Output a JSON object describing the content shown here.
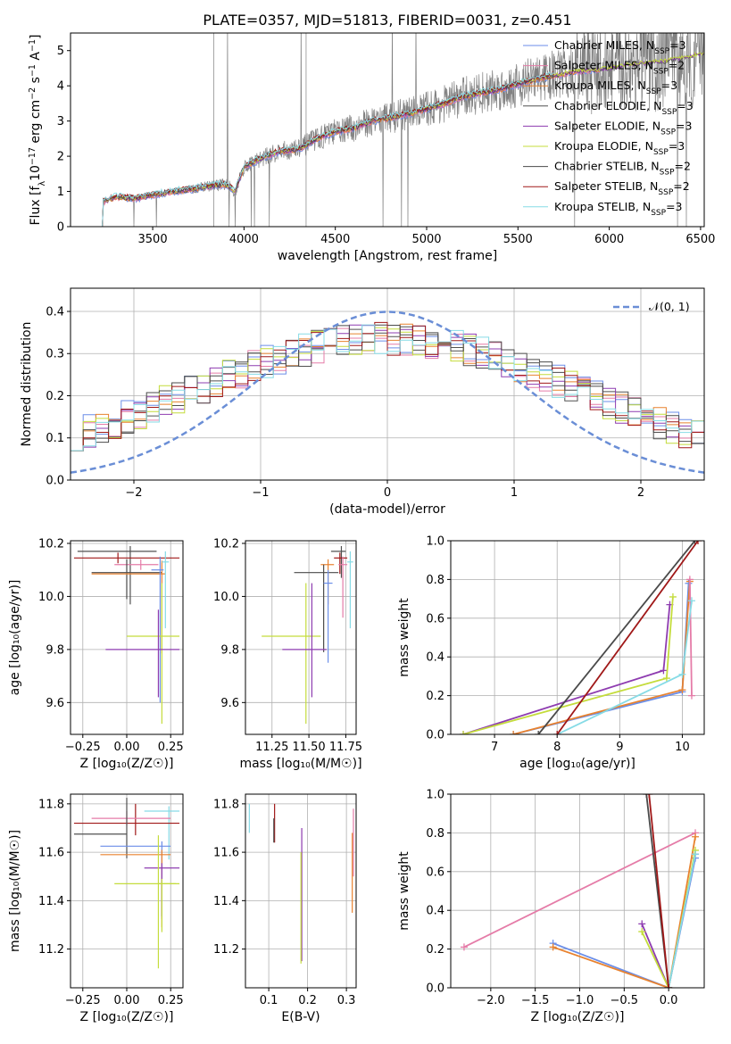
{
  "figure": {
    "title": "PLATE=0357, MJD=51813, FIBERID=0031, z=0.451"
  },
  "colors": {
    "chabrier_miles": "#6b8ee8",
    "salpeter_miles": "#e57ca8",
    "kroupa_miles": "#e8822f",
    "chabrier_elodie": "#505050",
    "salpeter_elodie": "#8e3cb0",
    "kroupa_elodie": "#c4dc3c",
    "chabrier_stelib": "#4a4a4a",
    "salpeter_stelib": "#a01818",
    "kroupa_stelib": "#86dbe6",
    "data_spectrum": "#808080",
    "normal_curve": "#6a8ed6"
  },
  "chart_data": [
    {
      "id": "spectrum",
      "type": "line",
      "xlabel": "wavelength [Angstrom, rest frame]",
      "ylabel_parts": [
        "Flux [f",
        "λ",
        "10",
        "−17",
        " erg cm",
        "−2",
        " s",
        "−1",
        " A",
        "−1",
        "]"
      ],
      "xlim": [
        3050,
        6520
      ],
      "ylim": [
        0,
        5.5
      ],
      "xticks": [
        3500,
        4000,
        4500,
        5000,
        5500,
        6000,
        6500
      ],
      "yticks": [
        0,
        1,
        2,
        3,
        4,
        5
      ],
      "grid": false,
      "legend_position": "top-right",
      "model_anchors": {
        "x": [
          3200,
          3230,
          3300,
          3400,
          3500,
          3600,
          3700,
          3800,
          3900,
          3950,
          4000,
          4100,
          4200,
          4300,
          4400,
          4500,
          4600,
          4700,
          4800,
          4900,
          5000,
          5100,
          5200,
          5300,
          5400,
          5500,
          5600,
          5700,
          5800,
          5900,
          6000,
          6100,
          6200,
          6300,
          6400,
          6500
        ],
        "y": [
          0,
          0.72,
          0.85,
          0.8,
          0.9,
          1.0,
          1.05,
          1.15,
          1.2,
          1.0,
          1.7,
          1.95,
          2.15,
          2.2,
          2.5,
          2.7,
          2.8,
          3.0,
          3.1,
          3.2,
          3.35,
          3.5,
          3.7,
          3.8,
          3.9,
          4.05,
          4.2,
          4.3,
          4.4,
          4.45,
          4.5,
          4.6,
          4.65,
          4.7,
          4.8,
          4.9
        ]
      },
      "series": [
        {
          "name": "Chabrier MILES, N",
          "nssp": "=3",
          "color_key": "chabrier_miles",
          "end_x": 5950
        },
        {
          "name": "Salpeter MILES, N",
          "nssp": "=2",
          "color_key": "salpeter_miles",
          "end_x": 5950
        },
        {
          "name": "Kroupa MILES, N",
          "nssp": "=3",
          "color_key": "kroupa_miles",
          "end_x": 5950
        },
        {
          "name": "Chabrier ELODIE, N",
          "nssp": "=3",
          "color_key": "chabrier_elodie",
          "end_x": 6800
        },
        {
          "name": "Salpeter ELODIE, N",
          "nssp": "=3",
          "color_key": "salpeter_elodie",
          "end_x": 6800
        },
        {
          "name": "Kroupa ELODIE, N",
          "nssp": "=3",
          "color_key": "kroupa_elodie",
          "end_x": 6800
        },
        {
          "name": "Chabrier STELIB, N",
          "nssp": "=2",
          "color_key": "chabrier_stelib",
          "end_x": 5700
        },
        {
          "name": "Salpeter STELIB, N",
          "nssp": "=2",
          "color_key": "salpeter_stelib",
          "end_x": 5700
        },
        {
          "name": "Kroupa STELIB, N",
          "nssp": "=3",
          "color_key": "kroupa_stelib",
          "end_x": 5700
        }
      ],
      "nssp_sub": "SSP"
    },
    {
      "id": "residuals",
      "type": "line",
      "xlabel": "(data-model)/error",
      "ylabel": "Normed distribution",
      "xlim": [
        -2.5,
        2.5
      ],
      "ylim": [
        0,
        0.455
      ],
      "xticks": [
        -2,
        -1,
        0,
        1,
        2
      ],
      "yticks": [
        0.0,
        0.1,
        0.2,
        0.3,
        0.4
      ],
      "xtick_labels": [
        "−2",
        "−1",
        "0",
        "1",
        "2"
      ],
      "ytick_labels": [
        "0.0",
        "0.1",
        "0.2",
        "0.3",
        "0.4"
      ],
      "grid": true,
      "legend_position": "top-right",
      "legend_label": "𝒩(0, 1)",
      "normal_curve": {
        "mean": 0,
        "sigma": 1
      },
      "histogram": {
        "bin_width": 0.1,
        "bin_start": -2.5,
        "bins": 50,
        "noise_amplitude": 0.04
      }
    },
    {
      "id": "age_vs_Z",
      "type": "scatter",
      "xlabel": "Z [log₁₀(Z/Z☉)]",
      "ylabel": "age  [log₁₀(age/yr)]",
      "xlim": [
        -0.32,
        0.32
      ],
      "ylim": [
        9.48,
        10.21
      ],
      "xticks": [
        -0.25,
        0.0,
        0.25
      ],
      "xtick_labels": [
        "−0.25",
        "0.00",
        "0.25"
      ],
      "yticks": [
        9.6,
        9.8,
        10.0,
        10.2
      ],
      "ytick_labels": [
        "9.6",
        "9.8",
        "10.0",
        "10.2"
      ],
      "grid": true,
      "points": [
        {
          "x": 0.02,
          "xerr": [
            0.3,
            0.15
          ],
          "y": 10.17,
          "yerr": [
            0.2,
            0.02
          ],
          "color_key": "chabrier_elodie"
        },
        {
          "x": -0.05,
          "xerr": [
            0.25,
            0.35
          ],
          "y": 10.145,
          "yerr": [
            0.02,
            0.02
          ],
          "color_key": "salpeter_stelib"
        },
        {
          "x": 0.08,
          "xerr": [
            0.15,
            0.1
          ],
          "y": 10.12,
          "yerr": [
            0.02,
            0.02
          ],
          "color_key": "salpeter_miles"
        },
        {
          "x": 0.0,
          "xerr": [
            0.2,
            0.2
          ],
          "y": 10.09,
          "yerr": [
            0.1,
            0.05
          ],
          "color_key": "chabrier_stelib"
        },
        {
          "x": 0.2,
          "xerr": [
            0.4,
            0.02
          ],
          "y": 10.085,
          "yerr": [
            0.3,
            0.05
          ],
          "color_key": "kroupa_miles"
        },
        {
          "x": 0.19,
          "xerr": [
            0.05,
            0.02
          ],
          "y": 10.1,
          "yerr": [
            0.5,
            0.05
          ],
          "color_key": "chabrier_miles"
        },
        {
          "x": 0.22,
          "xerr": [
            0.02,
            0.02
          ],
          "y": 10.13,
          "yerr": [
            0.25,
            0.04
          ],
          "color_key": "kroupa_stelib"
        },
        {
          "x": 0.2,
          "xerr": [
            0.2,
            0.1
          ],
          "y": 9.85,
          "yerr": [
            0.33,
            0.2
          ],
          "color_key": "kroupa_elodie"
        },
        {
          "x": 0.18,
          "xerr": [
            0.3,
            0.12
          ],
          "y": 9.8,
          "yerr": [
            0.18,
            0.15
          ],
          "color_key": "salpeter_elodie"
        }
      ]
    },
    {
      "id": "age_vs_mass",
      "type": "scatter",
      "xlabel": "mass [log₁₀(M/M☉)]",
      "xlim": [
        11.07,
        11.82
      ],
      "ylim": [
        9.48,
        10.21
      ],
      "xticks": [
        11.25,
        11.5,
        11.75
      ],
      "xtick_labels": [
        "11.25",
        "11.50",
        "11.75"
      ],
      "yticks": [
        9.6,
        9.8,
        10.0,
        10.2
      ],
      "ytick_labels": [
        "9.6",
        "9.8",
        "10.0",
        "10.2"
      ],
      "grid": true,
      "points": [
        {
          "x": 11.72,
          "xerr": [
            0.07,
            0.03
          ],
          "y": 10.17,
          "yerr": [
            0.1,
            0.02
          ],
          "color_key": "chabrier_elodie"
        },
        {
          "x": 11.71,
          "xerr": [
            0.04,
            0.05
          ],
          "y": 10.145,
          "yerr": [
            0.06,
            0.02
          ],
          "color_key": "salpeter_stelib"
        },
        {
          "x": 11.63,
          "xerr": [
            0.05,
            0.04
          ],
          "y": 10.12,
          "yerr": [
            0.15,
            0.02
          ],
          "color_key": "kroupa_miles"
        },
        {
          "x": 11.73,
          "xerr": [
            0.03,
            0.03
          ],
          "y": 10.12,
          "yerr": [
            0.2,
            0.03
          ],
          "color_key": "salpeter_miles"
        },
        {
          "x": 11.6,
          "xerr": [
            0.2,
            0.1
          ],
          "y": 10.09,
          "yerr": [
            0.3,
            0.03
          ],
          "color_key": "chabrier_stelib"
        },
        {
          "x": 11.63,
          "xerr": [
            0.03,
            0.03
          ],
          "y": 10.05,
          "yerr": [
            0.3,
            0.05
          ],
          "color_key": "chabrier_miles"
        },
        {
          "x": 11.78,
          "xerr": [
            0.02,
            0.02
          ],
          "y": 10.13,
          "yerr": [
            0.25,
            0.04
          ],
          "color_key": "kroupa_stelib"
        },
        {
          "x": 11.48,
          "xerr": [
            0.3,
            0.1
          ],
          "y": 9.85,
          "yerr": [
            0.33,
            0.2
          ],
          "color_key": "kroupa_elodie"
        },
        {
          "x": 11.52,
          "xerr": [
            0.2,
            0.1
          ],
          "y": 9.8,
          "yerr": [
            0.18,
            0.25
          ],
          "color_key": "salpeter_elodie"
        }
      ]
    },
    {
      "id": "weight_vs_age",
      "type": "line",
      "xlabel": "age  [log₁₀(age/yr)]",
      "ylabel": "mass weight",
      "xlim": [
        6.3,
        10.35
      ],
      "ylim": [
        0,
        1.0
      ],
      "xticks": [
        7,
        8,
        9,
        10
      ],
      "yticks": [
        0.0,
        0.2,
        0.4,
        0.6,
        0.8,
        1.0
      ],
      "ytick_labels": [
        "0.0",
        "0.2",
        "0.4",
        "0.6",
        "0.8",
        "1.0"
      ],
      "grid": true,
      "lines": [
        {
          "x": [
            6.5,
            9.7,
            9.8
          ],
          "y": [
            0.0,
            0.33,
            0.67
          ],
          "color_key": "salpeter_elodie"
        },
        {
          "x": [
            6.5,
            9.75,
            9.85
          ],
          "y": [
            0.0,
            0.29,
            0.71
          ],
          "color_key": "kroupa_elodie"
        },
        {
          "x": [
            7.3,
            10.0,
            10.1
          ],
          "y": [
            0.0,
            0.22,
            0.78
          ],
          "color_key": "chabrier_miles"
        },
        {
          "x": [
            7.3,
            10.0,
            10.12
          ],
          "y": [
            0.0,
            0.23,
            0.79
          ],
          "color_key": "kroupa_miles"
        },
        {
          "x": [
            10.12,
            10.15
          ],
          "y": [
            0.8,
            0.2
          ],
          "color_key": "salpeter_miles"
        },
        {
          "x": [
            8.0,
            10.0,
            10.15
          ],
          "y": [
            0.0,
            0.31,
            0.69
          ],
          "color_key": "kroupa_stelib"
        },
        {
          "x": [
            7.7,
            10.2
          ],
          "y": [
            0.0,
            1.0
          ],
          "color_key": "chabrier_stelib"
        },
        {
          "x": [
            8.0,
            10.25
          ],
          "y": [
            0.0,
            1.0
          ],
          "color_key": "salpeter_stelib"
        }
      ]
    },
    {
      "id": "mass_vs_Z",
      "type": "scatter",
      "xlabel": "Z [log₁₀(Z/Z☉)]",
      "ylabel": "mass [log₁₀(M/M☉)]",
      "xlim": [
        -0.32,
        0.32
      ],
      "ylim": [
        11.04,
        11.84
      ],
      "xticks": [
        -0.25,
        0.0,
        0.25
      ],
      "xtick_labels": [
        "−0.25",
        "0.00",
        "0.25"
      ],
      "yticks": [
        11.2,
        11.4,
        11.6,
        11.8
      ],
      "ytick_labels": [
        "11.2",
        "11.4",
        "11.6",
        "11.8"
      ],
      "grid": true,
      "points": [
        {
          "x": 0.24,
          "xerr": [
            0.14,
            0.06
          ],
          "y": 11.77,
          "yerr": [
            0.2,
            0.02
          ],
          "color_key": "kroupa_stelib"
        },
        {
          "x": 0.05,
          "xerr": [
            0.35,
            0.25
          ],
          "y": 11.72,
          "yerr": [
            0.05,
            0.08
          ],
          "color_key": "salpeter_stelib"
        },
        {
          "x": 0.0,
          "xerr": [
            0.2,
            0.25
          ],
          "y": 11.74,
          "yerr": [
            0.03,
            0.03
          ],
          "color_key": "salpeter_miles"
        },
        {
          "x": 0.0,
          "xerr": [
            0.3,
            0.0
          ],
          "y": 11.675,
          "yerr": [
            0.1,
            0.15
          ],
          "color_key": "chabrier_elodie"
        },
        {
          "x": 0.2,
          "xerr": [
            0.35,
            0.05
          ],
          "y": 11.625,
          "yerr": [
            0.3,
            0.02
          ],
          "color_key": "chabrier_miles"
        },
        {
          "x": 0.2,
          "xerr": [
            0.35,
            0.05
          ],
          "y": 11.59,
          "yerr": [
            0.3,
            0.02
          ],
          "color_key": "kroupa_miles"
        },
        {
          "x": 0.2,
          "xerr": [
            0.1,
            0.1
          ],
          "y": 11.535,
          "yerr": [
            0.2,
            0.02
          ],
          "color_key": "salpeter_elodie"
        },
        {
          "x": 0.2,
          "xerr": [
            0.02,
            0.1
          ],
          "y": 11.47,
          "yerr": [
            0.2,
            0.02
          ],
          "color_key": "kroupa_elodie"
        },
        {
          "x": 0.18,
          "xerr": [
            0.25,
            0.1
          ],
          "y": 11.47,
          "yerr": [
            0.35,
            0.2
          ],
          "color_key": "kroupa_elodie"
        }
      ]
    },
    {
      "id": "mass_vs_ebv",
      "type": "scatter",
      "xlabel": "E(B-V)",
      "xlim": [
        0.04,
        0.325
      ],
      "ylim": [
        11.04,
        11.84
      ],
      "xticks": [
        0.1,
        0.2,
        0.3
      ],
      "xtick_labels": [
        "0.1",
        "0.2",
        "0.3"
      ],
      "yticks": [
        11.2,
        11.4,
        11.6,
        11.8
      ],
      "ytick_labels": [
        "11.2",
        "11.4",
        "11.6",
        "11.8"
      ],
      "grid": true,
      "points": [
        {
          "x": 0.05,
          "xerr": [
            0,
            0
          ],
          "y": 11.75,
          "yerr": [
            0.07,
            0.05
          ],
          "color_key": "kroupa_stelib"
        },
        {
          "x": 0.115,
          "xerr": [
            0,
            0
          ],
          "y": 11.72,
          "yerr": [
            0.08,
            0.08
          ],
          "color_key": "salpeter_stelib"
        },
        {
          "x": 0.113,
          "xerr": [
            0,
            0
          ],
          "y": 11.69,
          "yerr": [
            0.05,
            0.05
          ],
          "color_key": "chabrier_stelib"
        },
        {
          "x": 0.185,
          "xerr": [
            0,
            0
          ],
          "y": 11.45,
          "yerr": [
            0.3,
            0.25
          ],
          "color_key": "salpeter_elodie"
        },
        {
          "x": 0.183,
          "xerr": [
            0,
            0
          ],
          "y": 11.4,
          "yerr": [
            0.26,
            0.2
          ],
          "color_key": "kroupa_elodie"
        },
        {
          "x": 0.315,
          "xerr": [
            0,
            0
          ],
          "y": 11.55,
          "yerr": [
            0.2,
            0.13
          ],
          "color_key": "kroupa_miles"
        },
        {
          "x": 0.318,
          "xerr": [
            0,
            0
          ],
          "y": 11.6,
          "yerr": [
            0.1,
            0.18
          ],
          "color_key": "salpeter_miles"
        }
      ]
    },
    {
      "id": "weight_vs_Z",
      "type": "line",
      "xlabel": "Z [log₁₀(Z/Z☉)]",
      "ylabel": "mass weight",
      "xlim": [
        -2.45,
        0.4
      ],
      "ylim": [
        0,
        1.0
      ],
      "xticks": [
        -2.0,
        -1.5,
        -1.0,
        -0.5,
        0.0
      ],
      "xtick_labels": [
        "−2.0",
        "−1.5",
        "−1.0",
        "−0.5",
        "0.0"
      ],
      "yticks": [
        0.0,
        0.2,
        0.4,
        0.6,
        0.8,
        1.0
      ],
      "ytick_labels": [
        "0.0",
        "0.2",
        "0.4",
        "0.6",
        "0.8",
        "1.0"
      ],
      "grid": true,
      "lines": [
        {
          "x": [
            -2.3,
            0.3
          ],
          "y": [
            0.21,
            0.8
          ],
          "color_key": "salpeter_miles"
        },
        {
          "x": [
            -1.3,
            0.0,
            0.3
          ],
          "y": [
            0.23,
            0.0,
            0.67
          ],
          "color_key": "chabrier_miles"
        },
        {
          "x": [
            -1.3,
            0.0,
            0.3
          ],
          "y": [
            0.21,
            0.0,
            0.78
          ],
          "color_key": "kroupa_miles"
        },
        {
          "x": [
            -0.3,
            0.0,
            0.3
          ],
          "y": [
            0.33,
            0.0,
            0.69
          ],
          "color_key": "salpeter_elodie"
        },
        {
          "x": [
            -0.3,
            0.0,
            0.3
          ],
          "y": [
            0.29,
            0.0,
            0.71
          ],
          "color_key": "kroupa_elodie"
        },
        {
          "x": [
            0.0,
            0.3
          ],
          "y": [
            0.0,
            0.69
          ],
          "color_key": "kroupa_stelib"
        },
        {
          "x": [
            -0.25,
            0.0
          ],
          "y": [
            1.0,
            0.0
          ],
          "color_key": "chabrier_stelib"
        },
        {
          "x": [
            -0.22,
            0.0
          ],
          "y": [
            1.0,
            0.0
          ],
          "color_key": "salpeter_stelib"
        }
      ]
    }
  ]
}
